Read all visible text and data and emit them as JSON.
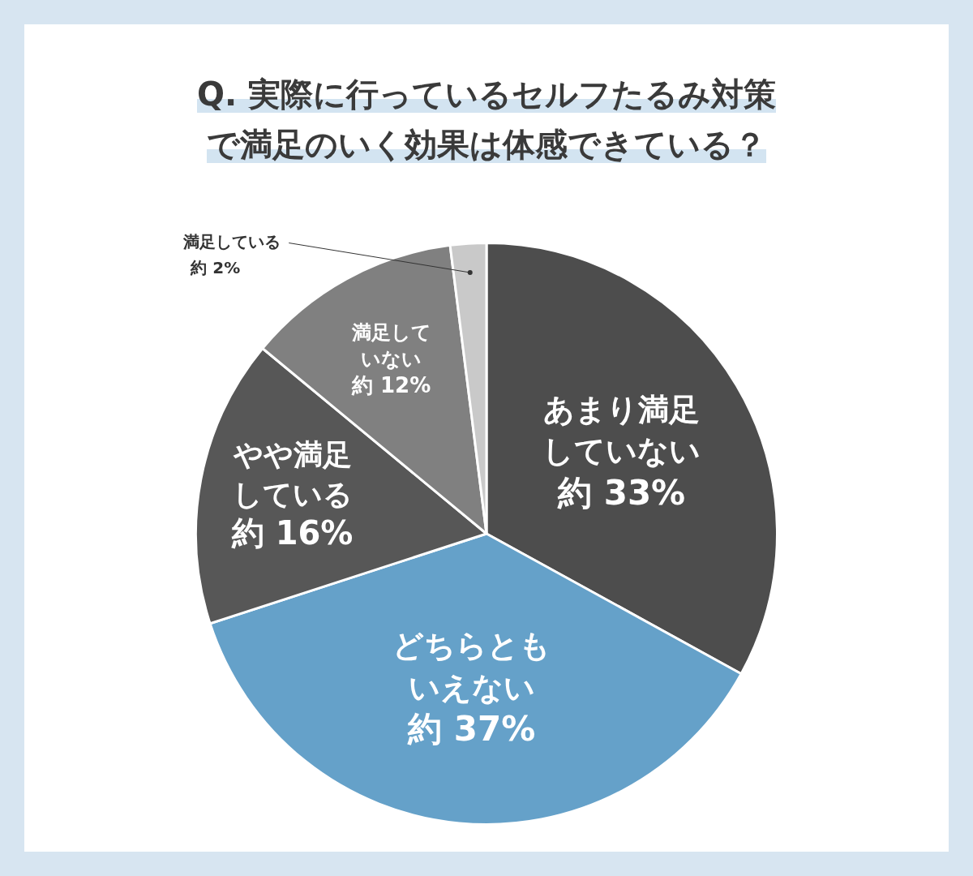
{
  "chart_data": {
    "type": "pie",
    "title": "Q. 実際に行っているセルフたるみ対策で満足のいく効果は体感できている？",
    "categories": [
      "あまり満足していない",
      "どちらともいえない",
      "やや満足している",
      "満足していない",
      "満足している"
    ],
    "values": [
      33,
      37,
      16,
      12,
      2
    ],
    "colors": [
      "#4d4d4d",
      "#65a1c9",
      "#575757",
      "#808080",
      "#c9c9c9"
    ],
    "value_labels": [
      "約 33%",
      "約 37%",
      "約 16%",
      "約 12%",
      "約 2%"
    ],
    "legend": false
  }
}
